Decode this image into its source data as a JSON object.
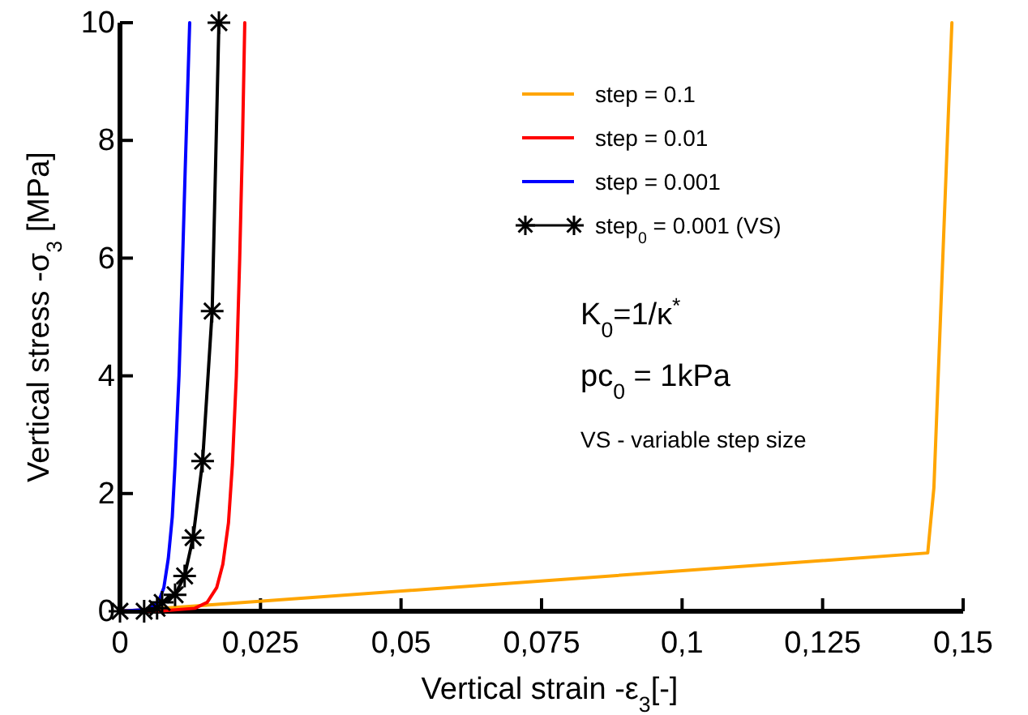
{
  "chart_data": {
    "type": "line",
    "xlabel": "Vertical strain  -ε$_{3}$[-]",
    "ylabel": "Vertical stress  -σ$_{3}$ [MPa]",
    "xlim": [
      0,
      0.15
    ],
    "ylim": [
      0,
      10
    ],
    "xticks": [
      {
        "value": 0,
        "label": "0"
      },
      {
        "value": 0.025,
        "label": "0,025"
      },
      {
        "value": 0.05,
        "label": "0,05"
      },
      {
        "value": 0.075,
        "label": "0,075"
      },
      {
        "value": 0.1,
        "label": "0,1"
      },
      {
        "value": 0.125,
        "label": "0,125"
      },
      {
        "value": 0.15,
        "label": "0,15"
      }
    ],
    "yticks": [
      0,
      2,
      4,
      6,
      8,
      10
    ],
    "grid": false,
    "legend": "top right",
    "line_style": "solid",
    "series": [
      {
        "name": "step = 0.1",
        "color": "#ffa500",
        "marker": "none",
        "x": [
          0,
          0.005,
          0.015,
          0.1437,
          0.1448,
          0.148
        ],
        "values": [
          0,
          null,
          0.1,
          0.99,
          2.1,
          10
        ]
      },
      {
        "name": "step = 0.01",
        "color": "#ff0000",
        "marker": "none",
        "x": [
          0,
          0.008,
          0.0133,
          0.0155,
          0.0172,
          0.0183,
          0.0193,
          0.02,
          0.0207,
          0.0213,
          0.0218,
          0.0222
        ],
        "values": [
          0,
          0.01,
          0.05,
          0.15,
          0.4,
          0.8,
          1.5,
          2.5,
          4,
          6,
          8,
          10
        ]
      },
      {
        "name": "step = 0.001",
        "color": "#0000ff",
        "marker": "none",
        "x": [
          0,
          0.005,
          0.0068,
          0.0078,
          0.0086,
          0.0093,
          0.0098,
          0.0105,
          0.011,
          0.0116,
          0.0124
        ],
        "values": [
          0,
          0.03,
          0.15,
          0.4,
          0.9,
          1.6,
          2.5,
          4,
          5.5,
          7.5,
          10
        ]
      },
      {
        "name": "step$_{0}$ = 0.001 (VS)",
        "color": "#000000",
        "marker": "cross",
        "x": [
          0,
          0.0043,
          0.0066,
          0.0075,
          0.0098,
          0.0115,
          0.013,
          0.0147,
          0.0164,
          0.0176
        ],
        "values": [
          0,
          0,
          0.05,
          0.15,
          0.28,
          0.6,
          1.25,
          2.55,
          5.1,
          10
        ]
      }
    ],
    "annotations": [
      "K$_{0}$=1/κ$^{*}$",
      "pc$_{0}$ = 1kPa",
      "VS - variable step size"
    ]
  }
}
